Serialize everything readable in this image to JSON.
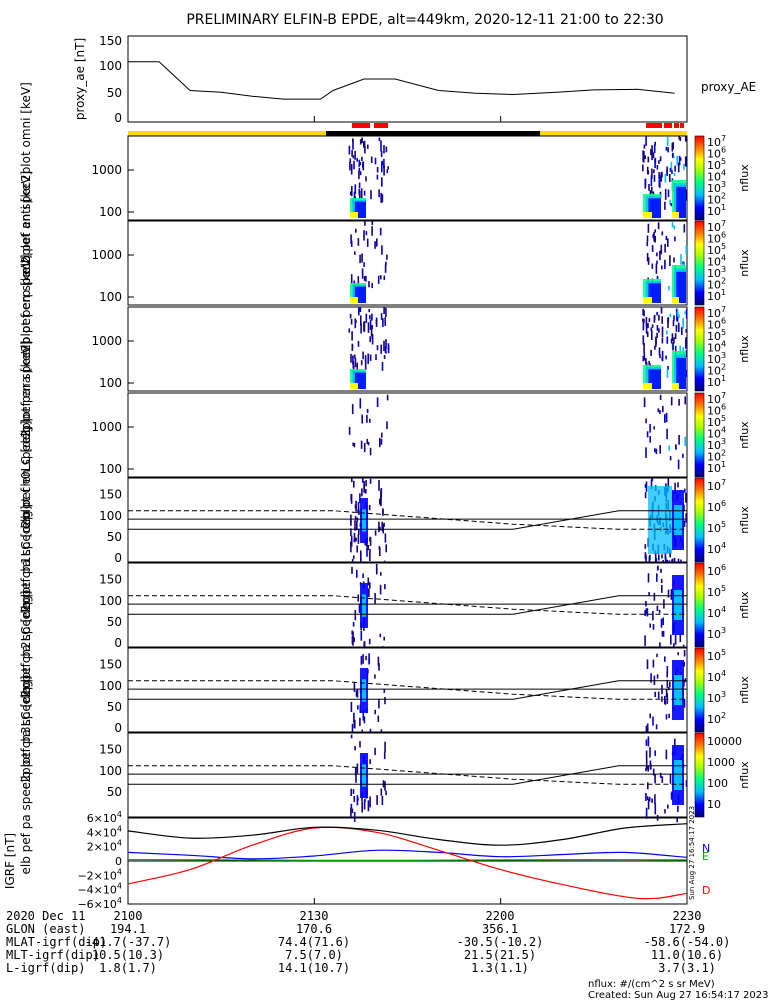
{
  "chart_data": {
    "title": "PRELIMINARY ELFIN-B EPDE, alt=449km, 2020-12-11 21:00 to 22:30",
    "type": "line",
    "time_ticks": [
      "2100",
      "2130",
      "2200",
      "2230"
    ],
    "proxy_ae": {
      "ylabel": "proxy_ae [nT]",
      "series_name": "proxy_AE",
      "yticks": [
        "150",
        "100",
        "50",
        "0"
      ],
      "ylim": [
        0,
        150
      ],
      "x_min": [
        0,
        5,
        10,
        15,
        20,
        25,
        31,
        33,
        38,
        43,
        50,
        56,
        62,
        69,
        75,
        82,
        88
      ],
      "y": [
        105,
        105,
        55,
        52,
        45,
        40,
        40,
        55,
        75,
        75,
        55,
        50,
        48,
        52,
        56,
        57,
        50
      ]
    },
    "spectrograms": [
      {
        "label": "elb pef en spec2plot omni [keV]",
        "ticks": [
          "1000",
          "100"
        ],
        "cbar_label": "nflux",
        "cbar_ticks": [
          "10^7",
          "10^6",
          "10^5",
          "10^4",
          "10^3",
          "10^2",
          "10^1"
        ]
      },
      {
        "label": "elb pef en spec2plot anti [keV]",
        "ticks": [
          "1000",
          "100"
        ],
        "cbar_label": "nflux",
        "cbar_ticks": [
          "10^7",
          "10^6",
          "10^5",
          "10^4",
          "10^3",
          "10^2",
          "10^1"
        ]
      },
      {
        "label": "elb pef en spec2plot perp [keV]",
        "ticks": [
          "1000",
          "100"
        ],
        "cbar_label": "nflux",
        "cbar_ticks": [
          "10^7",
          "10^6",
          "10^5",
          "10^4",
          "10^3",
          "10^2",
          "10^1"
        ]
      },
      {
        "label": "elb pef en spec2plot para [keV]",
        "ticks": [
          "1000",
          "100"
        ],
        "cbar_label": "nflux",
        "cbar_ticks": [
          "10^7",
          "10^6",
          "10^5",
          "10^4",
          "10^3",
          "10^2",
          "10^1"
        ]
      }
    ],
    "pitch_angle_panels": [
      {
        "label": "elb pef pa spec2plot ch0LC [deg]",
        "ticks": [
          "150",
          "100",
          "50",
          "0"
        ],
        "cbar_label": "nflux",
        "cbar_ticks": [
          "10^7",
          "10^6",
          "10^5",
          "10^4"
        ]
      },
      {
        "label": "elb pef pa spec2plot ch1LC [deg]",
        "ticks": [
          "150",
          "100",
          "50",
          "0"
        ],
        "cbar_label": "nflux",
        "cbar_ticks": [
          "10^6",
          "10^5",
          "10^4",
          "10^3"
        ]
      },
      {
        "label": "elb pef pa spec2plot ch2LC [deg]",
        "ticks": [
          "150",
          "100",
          "50",
          "0"
        ],
        "cbar_label": "nflux",
        "cbar_ticks": [
          "10^5",
          "10^4",
          "10^3",
          "10^2"
        ]
      },
      {
        "label": "elb pef pa spec2plot ch3LC [deg]",
        "ticks": [
          "150",
          "100",
          "50"
        ],
        "cbar_label": "nflux",
        "cbar_ticks": [
          "10000",
          "1000",
          "100",
          "10"
        ]
      }
    ],
    "igrf": {
      "ylabel": "IGRF [nT]",
      "yticks": [
        "6×10^4",
        "4×10^4",
        "2×10^4",
        "0",
        "−2×10^4",
        "−4×10^4",
        "−6×10^4"
      ],
      "ylim": [
        -60000,
        60000
      ],
      "legend": [
        "N",
        "E",
        "D"
      ],
      "series": [
        {
          "name": "N",
          "color": "#0000ff",
          "x_min": [
            0,
            10,
            20,
            30,
            40,
            50,
            60,
            70,
            80,
            90
          ],
          "y": [
            12000,
            8000,
            3000,
            7000,
            15000,
            12000,
            6000,
            9000,
            12000,
            5000
          ]
        },
        {
          "name": "E",
          "color": "#00aa00",
          "x_min": [
            0,
            15,
            30,
            45,
            60,
            75,
            90
          ],
          "y": [
            2000,
            1500,
            1000,
            1000,
            1500,
            2000,
            1500
          ]
        },
        {
          "name": "D",
          "color": "#ff0000",
          "x_min": [
            0,
            10,
            20,
            30,
            40,
            50,
            60,
            70,
            80,
            85,
            90
          ],
          "y": [
            -32000,
            -12000,
            22000,
            46000,
            40000,
            15000,
            -12000,
            -33000,
            -50000,
            -52000,
            -45000
          ]
        },
        {
          "name": "total",
          "color": "#000000",
          "x_min": [
            0,
            10,
            20,
            30,
            40,
            50,
            60,
            70,
            80,
            90
          ],
          "y": [
            42000,
            32000,
            36000,
            47000,
            43000,
            30000,
            22000,
            30000,
            46000,
            52000
          ]
        }
      ]
    },
    "orbit_table": {
      "rows": [
        {
          "label": "2020 Dec 11",
          "values": [
            "2100",
            "2130",
            "2200",
            "2230"
          ]
        },
        {
          "label": "GLON (east)",
          "values": [
            "194.1",
            "170.6",
            "356.1",
            "172.9"
          ]
        },
        {
          "label": "MLAT-igrf(dip)",
          "values": [
            "-41.7(-37.7)",
            "74.4(71.6)",
            "-30.5(-10.2)",
            "-58.6(-54.0)"
          ]
        },
        {
          "label": "MLT-igrf(dip)",
          "values": [
            "10.5(10.3)",
            "7.5(7.0)",
            "21.5(21.5)",
            "11.0(10.6)"
          ]
        },
        {
          "label": "L-igrf(dip)",
          "values": [
            "1.8(1.7)",
            "14.1(10.7)",
            "1.3(1.1)",
            "3.7(3.1)"
          ]
        }
      ]
    },
    "footer": {
      "units": "nflux: #/(cm^2 s sr MeV)",
      "created": "Created: Sun Aug 27 16:54:17 2023",
      "side_stamp": "Sun Aug 27 16:54:17 2023"
    }
  }
}
